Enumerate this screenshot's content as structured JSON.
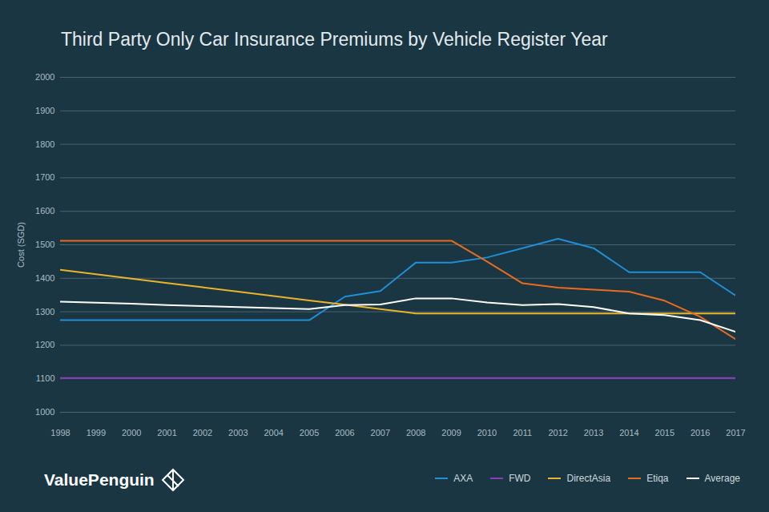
{
  "chart_data": {
    "type": "line",
    "title": "Third Party Only Car Insurance Premiums by Vehicle Register Year",
    "y_label": "Cost (SGD)",
    "caption": "ValuePenguin",
    "x": [
      1998,
      1999,
      2000,
      2001,
      2002,
      2003,
      2004,
      2005,
      2006,
      2007,
      2008,
      2009,
      2010,
      2011,
      2012,
      2013,
      2014,
      2015,
      2016,
      2017
    ],
    "series": [
      {
        "name": "AXA",
        "color": "#1f8fd6",
        "values": [
          1275,
          1275,
          1275,
          1275,
          1275,
          1275,
          1275,
          1275,
          1345,
          1362,
          1447,
          1447,
          1462,
          1490,
          1518,
          1490,
          1418,
          1418,
          1418,
          1348
        ]
      },
      {
        "name": "FWD",
        "color": "#8c3cbc",
        "values": [
          1102,
          1102,
          1102,
          1102,
          1102,
          1102,
          1102,
          1102,
          1102,
          1102,
          1102,
          1102,
          1102,
          1102,
          1102,
          1102,
          1102,
          1102,
          1102,
          1102
        ]
      },
      {
        "name": "DirectAsia",
        "color": "#e8b52a",
        "values": [
          1425,
          1412,
          1399,
          1386,
          1373,
          1360,
          1347,
          1334,
          1321,
          1308,
          1295,
          1295,
          1295,
          1295,
          1295,
          1295,
          1295,
          1295,
          1295,
          1295
        ]
      },
      {
        "name": "Etiqa",
        "color": "#ea6b1e",
        "values": [
          1512,
          1512,
          1512,
          1512,
          1512,
          1512,
          1512,
          1512,
          1512,
          1512,
          1512,
          1512,
          1450,
          1385,
          1372,
          1366,
          1360,
          1333,
          1285,
          1218
        ]
      },
      {
        "name": "Average",
        "color": "#ffffff",
        "values": [
          1330,
          1327,
          1324,
          1320,
          1317,
          1314,
          1311,
          1308,
          1320,
          1322,
          1340,
          1340,
          1328,
          1320,
          1323,
          1314,
          1295,
          1290,
          1275,
          1240
        ]
      }
    ],
    "xlim": [
      1998,
      2017
    ],
    "xticks": [
      1998,
      1999,
      2000,
      2001,
      2002,
      2003,
      2004,
      2005,
      2006,
      2007,
      2008,
      2009,
      2010,
      2011,
      2012,
      2013,
      2014,
      2015,
      2016,
      2017
    ],
    "ylim": [
      1000,
      2000
    ],
    "yticks": [
      1000,
      1100,
      1200,
      1300,
      1400,
      1500,
      1600,
      1700,
      1800,
      1900,
      2000
    ],
    "grid": true,
    "legend": "bottom-right"
  }
}
